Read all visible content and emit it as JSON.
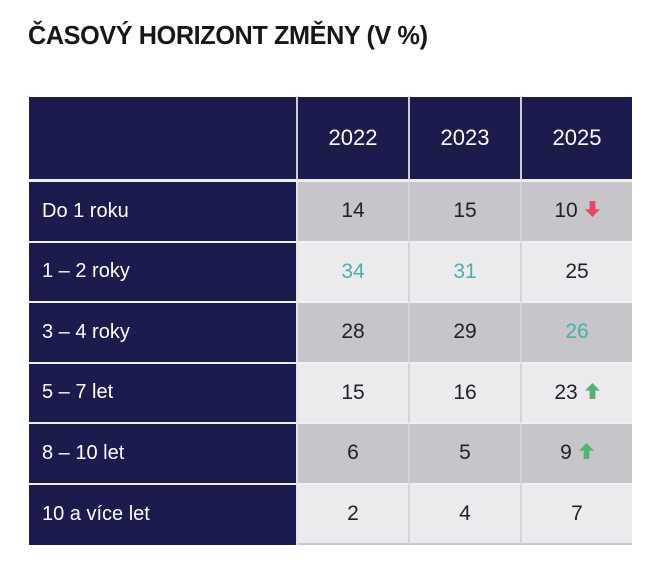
{
  "title": "ČASOVÝ HORIZONT ZMĚNY (V %)",
  "colors": {
    "navy": "#1b1c4e",
    "row_gray": "#c6c6ca",
    "row_light": "#ebebed",
    "accent_teal": "#4bafaa",
    "arrow_up_green": "#57b174",
    "arrow_down_red": "#e74569",
    "text_dark": "#232327",
    "header_text": "#ffffff"
  },
  "chart_data": {
    "type": "table",
    "title": "ČASOVÝ HORIZONT ZMĚNY (V %)",
    "columns": [
      "2022",
      "2023",
      "2025"
    ],
    "rows": [
      {
        "label": "Do 1 roku",
        "cells": [
          {
            "value": 14
          },
          {
            "value": 15
          },
          {
            "value": 10,
            "trend": "down"
          }
        ]
      },
      {
        "label": "1 – 2 roky",
        "cells": [
          {
            "value": 34,
            "accent": true
          },
          {
            "value": 31,
            "accent": true
          },
          {
            "value": 25
          }
        ]
      },
      {
        "label": "3 – 4 roky",
        "cells": [
          {
            "value": 28
          },
          {
            "value": 29
          },
          {
            "value": 26,
            "accent": true
          }
        ]
      },
      {
        "label": "5 – 7 let",
        "cells": [
          {
            "value": 15
          },
          {
            "value": 16
          },
          {
            "value": 23,
            "trend": "up"
          }
        ]
      },
      {
        "label": "8 – 10 let",
        "cells": [
          {
            "value": 6
          },
          {
            "value": 5
          },
          {
            "value": 9,
            "trend": "up"
          }
        ]
      },
      {
        "label": "10 a více let",
        "cells": [
          {
            "value": 2
          },
          {
            "value": 4
          },
          {
            "value": 7
          }
        ]
      }
    ]
  }
}
